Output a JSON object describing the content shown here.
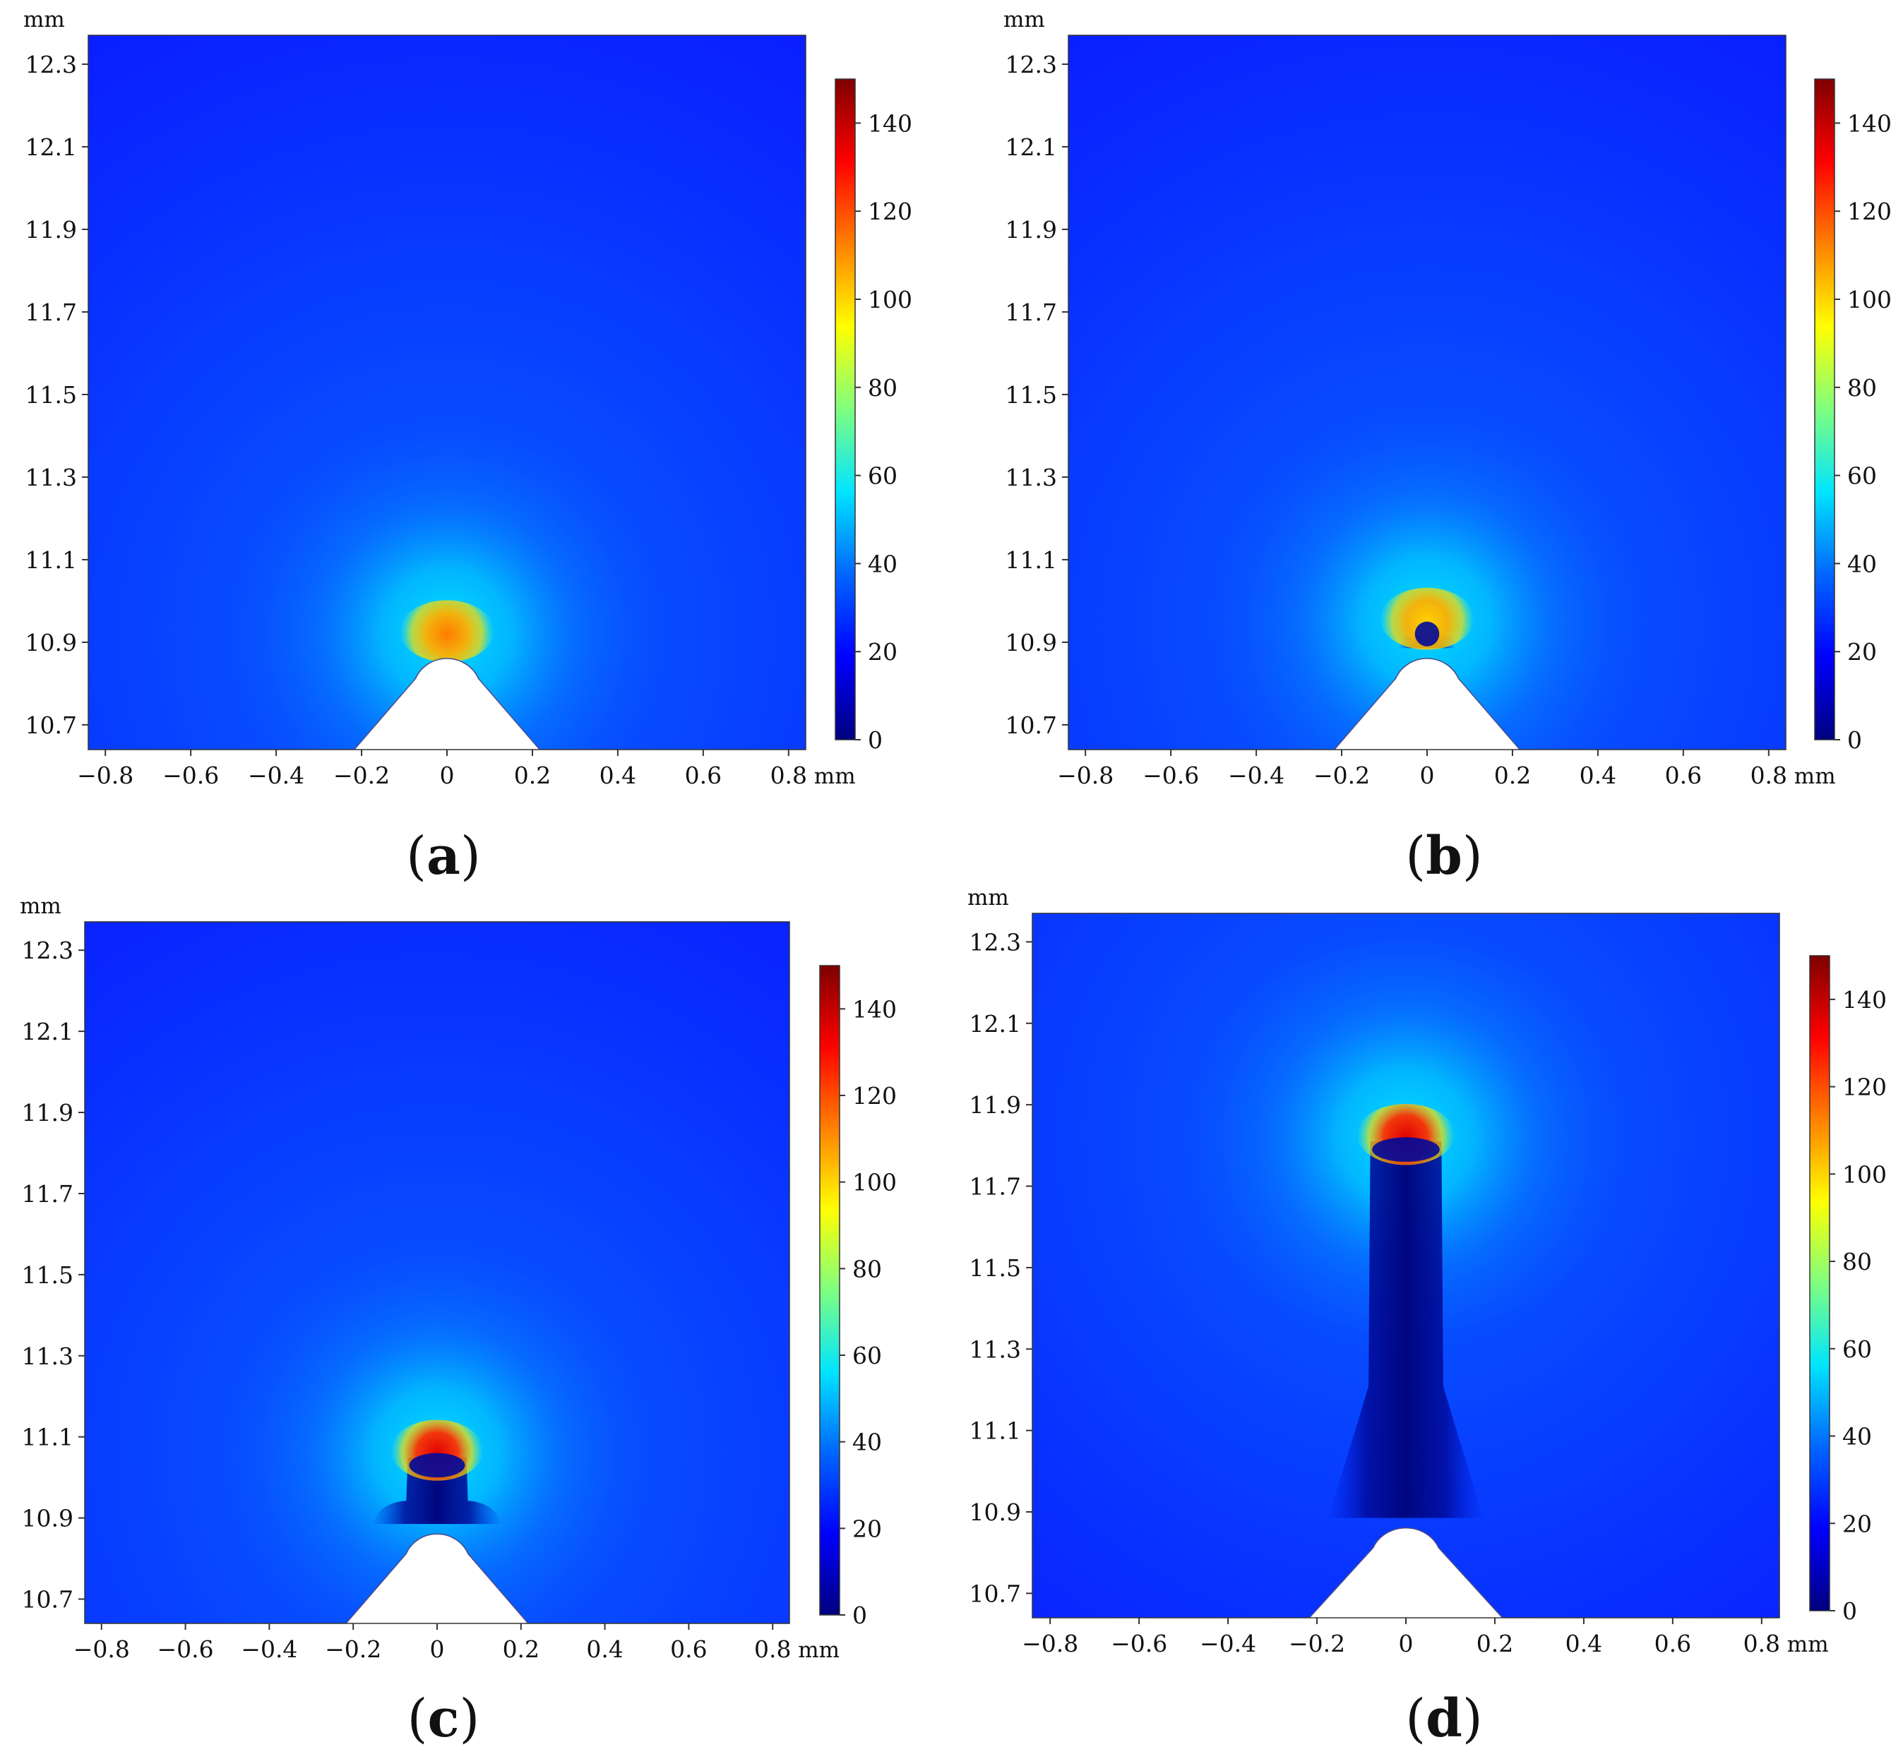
{
  "figure": {
    "description_hidden": false,
    "colormap": [
      "#00007f",
      "#0000ff",
      "#0066ff",
      "#00e5ff",
      "#7fff7f",
      "#ffff00",
      "#ff8000",
      "#ff0000",
      "#7f0000"
    ]
  },
  "chart_data": [
    {
      "type": "heatmap",
      "panel_label": "a",
      "x_ticks": [
        "−0.8",
        "−0.6",
        "−0.4",
        "−0.2",
        "0",
        "0.2",
        "0.4",
        "0.6",
        "0.8"
      ],
      "x_unit": "mm",
      "y_ticks": [
        "10.7",
        "10.9",
        "11.1",
        "11.3",
        "11.5",
        "11.7",
        "11.9",
        "12.1",
        "12.3"
      ],
      "y_unit": "mm",
      "xlim": [
        -0.84,
        0.84
      ],
      "ylim": [
        10.64,
        12.37
      ],
      "colorbar": {
        "min": 0,
        "max": 150,
        "ticks": [
          "0",
          "20",
          "40",
          "60",
          "80",
          "100",
          "120",
          "140"
        ]
      },
      "electrode": {
        "tip_y": 10.92,
        "tip_radius": 0.08,
        "base_half_width": 0.22
      },
      "streamer": {
        "tip_y": 10.92,
        "channel_width": 0.0,
        "peak_value": 110
      }
    },
    {
      "type": "heatmap",
      "panel_label": "b",
      "x_ticks": [
        "−0.8",
        "−0.6",
        "−0.4",
        "−0.2",
        "0",
        "0.2",
        "0.4",
        "0.6",
        "0.8"
      ],
      "x_unit": "mm",
      "y_ticks": [
        "10.7",
        "10.9",
        "11.1",
        "11.3",
        "11.5",
        "11.7",
        "11.9",
        "12.1",
        "12.3"
      ],
      "y_unit": "mm",
      "xlim": [
        -0.84,
        0.84
      ],
      "ylim": [
        10.64,
        12.37
      ],
      "colorbar": {
        "min": 0,
        "max": 150,
        "ticks": [
          "0",
          "20",
          "40",
          "60",
          "80",
          "100",
          "120",
          "140"
        ]
      },
      "electrode": {
        "tip_y": 10.92,
        "tip_radius": 0.08,
        "base_half_width": 0.22
      },
      "streamer": {
        "tip_y": 10.95,
        "channel_width": 0.03,
        "peak_value": 100
      }
    },
    {
      "type": "heatmap",
      "panel_label": "c",
      "x_ticks": [
        "−0.8",
        "−0.6",
        "−0.4",
        "−0.2",
        "0",
        "0.2",
        "0.4",
        "0.6",
        "0.8"
      ],
      "x_unit": "mm",
      "y_ticks": [
        "10.7",
        "10.9",
        "11.1",
        "11.3",
        "11.5",
        "11.7",
        "11.9",
        "12.1",
        "12.3"
      ],
      "y_unit": "mm",
      "xlim": [
        -0.84,
        0.84
      ],
      "ylim": [
        10.64,
        12.37
      ],
      "colorbar": {
        "min": 0,
        "max": 150,
        "ticks": [
          "0",
          "20",
          "40",
          "60",
          "80",
          "100",
          "120",
          "140"
        ]
      },
      "electrode": {
        "tip_y": 10.92,
        "tip_radius": 0.08,
        "base_half_width": 0.22
      },
      "streamer": {
        "tip_y": 11.06,
        "channel_width": 0.07,
        "peak_value": 130
      }
    },
    {
      "type": "heatmap",
      "panel_label": "d",
      "x_ticks": [
        "−0.8",
        "−0.6",
        "−0.4",
        "−0.2",
        "0",
        "0.2",
        "0.4",
        "0.6",
        "0.8"
      ],
      "x_unit": "mm",
      "y_ticks": [
        "10.7",
        "10.9",
        "11.1",
        "11.3",
        "11.5",
        "11.7",
        "11.9",
        "12.1",
        "12.3"
      ],
      "y_unit": "mm",
      "xlim": [
        -0.84,
        0.84
      ],
      "ylim": [
        10.64,
        12.37
      ],
      "colorbar": {
        "min": 0,
        "max": 150,
        "ticks": [
          "0",
          "20",
          "40",
          "60",
          "80",
          "100",
          "120",
          "140"
        ]
      },
      "electrode": {
        "tip_y": 10.92,
        "tip_radius": 0.08,
        "base_half_width": 0.22
      },
      "streamer": {
        "tip_y": 11.82,
        "channel_width": 0.08,
        "peak_value": 140
      }
    }
  ]
}
